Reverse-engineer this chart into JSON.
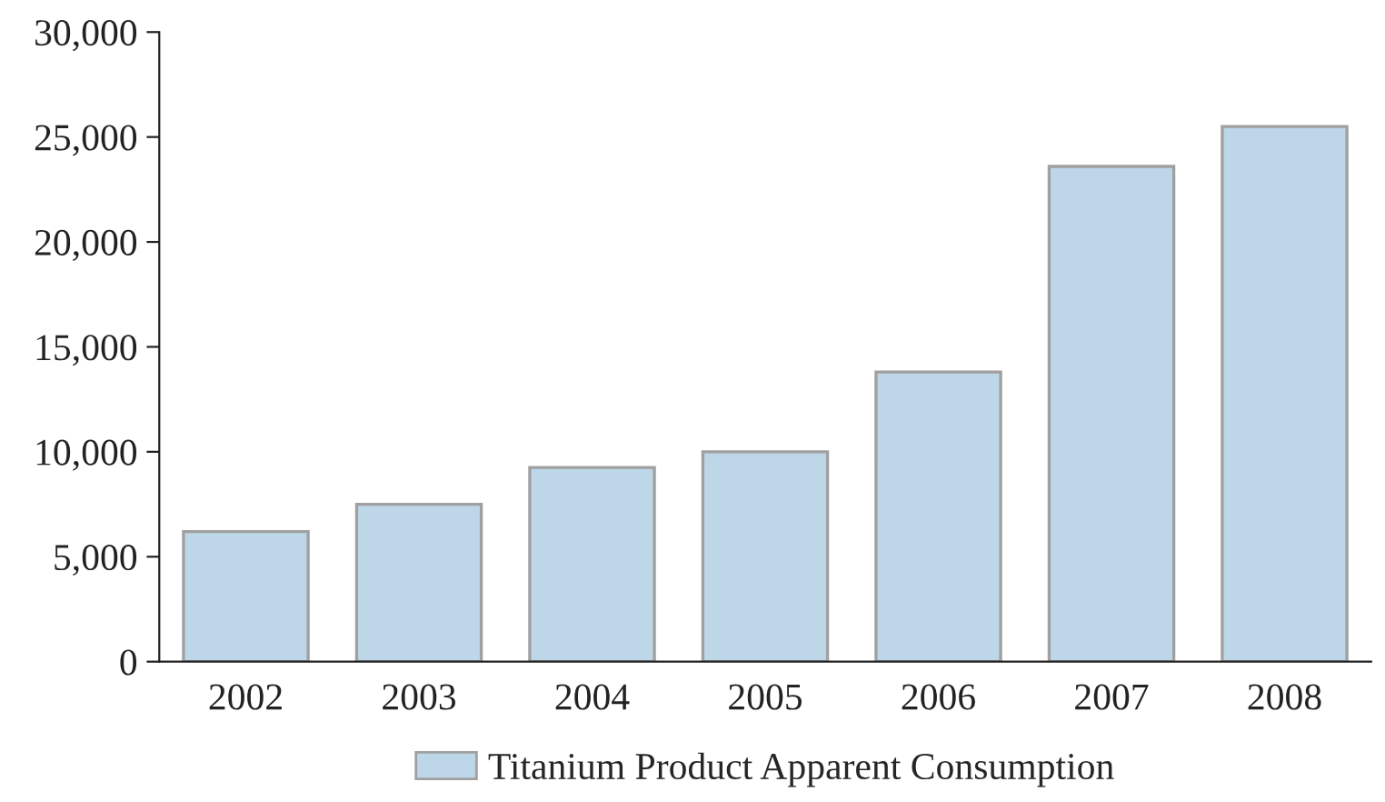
{
  "chart_data": {
    "type": "bar",
    "categories": [
      "2002",
      "2003",
      "2004",
      "2005",
      "2006",
      "2007",
      "2008"
    ],
    "series": [
      {
        "name": "Titanium Product Apparent Consumption",
        "color": "#bdd7e9",
        "values": [
          6200,
          7500,
          9250,
          10000,
          13800,
          23600,
          25500
        ]
      }
    ],
    "ylim": [
      0,
      30000
    ],
    "yticks": [
      {
        "value": 0,
        "label": "0"
      },
      {
        "value": 5000,
        "label": "5,000"
      },
      {
        "value": 10000,
        "label": "10,000"
      },
      {
        "value": 15000,
        "label": "15,000"
      },
      {
        "value": 20000,
        "label": "20,000"
      },
      {
        "value": 25000,
        "label": "25,000"
      },
      {
        "value": 30000,
        "label": "30,000"
      }
    ],
    "grid": false,
    "legend": "bottom"
  }
}
